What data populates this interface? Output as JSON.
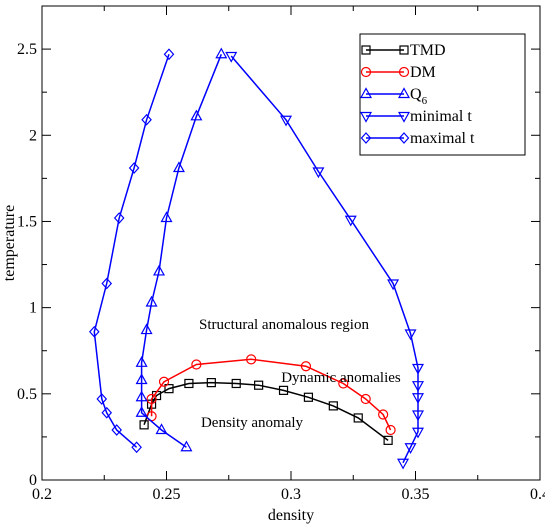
{
  "chart_data": {
    "type": "line",
    "title": "",
    "xlabel": "density",
    "ylabel": "temperature",
    "xlim": [
      0.2,
      0.4
    ],
    "ylim": [
      0,
      2.75
    ],
    "x_ticks": [
      "0.2",
      "0.25",
      "0.3",
      "0.35",
      "0.4"
    ],
    "y_ticks": [
      "0",
      "0.5",
      "1",
      "1.5",
      "2",
      "2.5"
    ],
    "grid": false,
    "legend_position": "top-right",
    "series": [
      {
        "name": "TMD",
        "color": "#000000",
        "marker": "square",
        "points": [
          [
            0.241,
            0.32
          ],
          [
            0.244,
            0.44
          ],
          [
            0.246,
            0.49
          ],
          [
            0.251,
            0.53
          ],
          [
            0.259,
            0.56
          ],
          [
            0.268,
            0.565
          ],
          [
            0.278,
            0.56
          ],
          [
            0.287,
            0.55
          ],
          [
            0.297,
            0.52
          ],
          [
            0.307,
            0.48
          ],
          [
            0.317,
            0.43
          ],
          [
            0.327,
            0.36
          ],
          [
            0.339,
            0.23
          ]
        ]
      },
      {
        "name": "DM",
        "color": "#ff0000",
        "marker": "circle",
        "points": [
          [
            0.244,
            0.37
          ],
          [
            0.244,
            0.47
          ],
          [
            0.249,
            0.57
          ],
          [
            0.262,
            0.67
          ],
          [
            0.284,
            0.7
          ],
          [
            0.306,
            0.66
          ],
          [
            0.321,
            0.56
          ],
          [
            0.33,
            0.47
          ],
          [
            0.337,
            0.38
          ],
          [
            0.34,
            0.29
          ]
        ]
      },
      {
        "name": "Q6",
        "name_main": "Q",
        "name_subscript": "6",
        "color": "#0000ff",
        "marker": "triangle-up",
        "points": [
          [
            0.258,
            0.19
          ],
          [
            0.248,
            0.29
          ],
          [
            0.24,
            0.39
          ],
          [
            0.24,
            0.48
          ],
          [
            0.24,
            0.58
          ],
          [
            0.24,
            0.68
          ],
          [
            0.242,
            0.87
          ],
          [
            0.244,
            1.03
          ],
          [
            0.247,
            1.21
          ],
          [
            0.25,
            1.52
          ],
          [
            0.255,
            1.81
          ],
          [
            0.262,
            2.11
          ],
          [
            0.272,
            2.47
          ]
        ]
      },
      {
        "name": "minimal t",
        "color": "#0000ff",
        "marker": "triangle-down",
        "points": [
          [
            0.276,
            2.46
          ],
          [
            0.298,
            2.09
          ],
          [
            0.311,
            1.79
          ],
          [
            0.324,
            1.51
          ],
          [
            0.341,
            1.14
          ],
          [
            0.348,
            0.85
          ],
          [
            0.351,
            0.65
          ],
          [
            0.351,
            0.55
          ],
          [
            0.351,
            0.48
          ],
          [
            0.351,
            0.38
          ],
          [
            0.351,
            0.28
          ],
          [
            0.348,
            0.19
          ],
          [
            0.345,
            0.1
          ]
        ]
      },
      {
        "name": "maximal t",
        "color": "#0000ff",
        "marker": "diamond",
        "points": [
          [
            0.251,
            2.47
          ],
          [
            0.242,
            2.09
          ],
          [
            0.237,
            1.81
          ],
          [
            0.231,
            1.52
          ],
          [
            0.226,
            1.14
          ],
          [
            0.221,
            0.86
          ],
          [
            0.224,
            0.47
          ],
          [
            0.226,
            0.39
          ],
          [
            0.23,
            0.29
          ],
          [
            0.238,
            0.19
          ]
        ]
      }
    ],
    "annotations": [
      {
        "text": "Structural anomalous region",
        "x": 0.302,
        "y": 0.9
      },
      {
        "text": "Dynamic anomalies",
        "x": 0.319,
        "y": 0.59
      },
      {
        "text": "Density anomaly",
        "x": 0.288,
        "y": 0.33
      }
    ]
  }
}
